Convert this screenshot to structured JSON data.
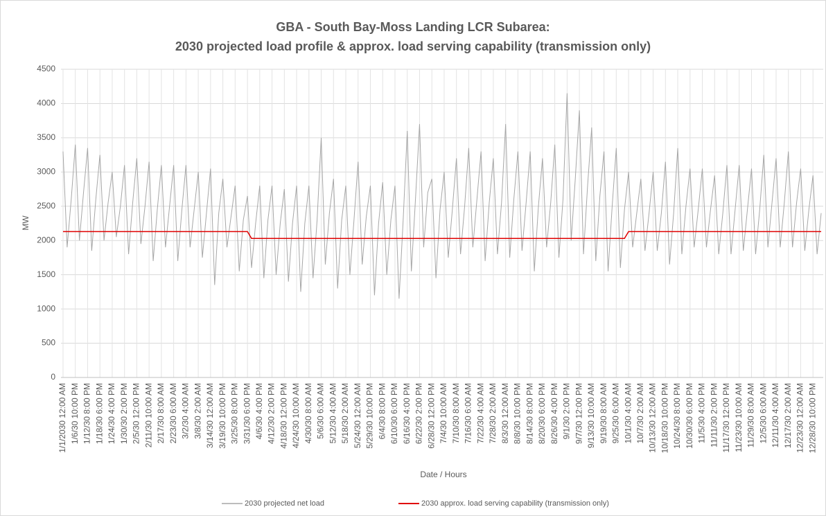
{
  "chart_data": {
    "type": "line",
    "title": "GBA - South Bay-Moss Landing LCR Subarea:",
    "subtitle": "2030 projected load profile & approx. load serving capability (transmission only)",
    "x_label": "Date / Hours",
    "y_label": "MW",
    "categories": [
      "1/1/2030 12:00 AM",
      null,
      null,
      "1/6/30 10:00 PM",
      null,
      null,
      "1/12/30 8:00 PM",
      null,
      null,
      "1/18/30 6:00 PM",
      null,
      null,
      "1/24/30 4:00 PM",
      null,
      null,
      "1/30/30 2:00 PM",
      null,
      null,
      "2/5/30 12:00 PM",
      null,
      null,
      "2/11/30 10:00 AM",
      null,
      null,
      "2/17/30 8:00 AM",
      null,
      null,
      "2/23/30 6:00 AM",
      null,
      null,
      "3/2/30 4:00 AM",
      null,
      null,
      "3/8/30 2:00 AM",
      null,
      null,
      "3/14/30 12:00 AM",
      null,
      null,
      "3/19/30 10:00 PM",
      null,
      null,
      "3/25/30 8:00 PM",
      null,
      null,
      "3/31/30 6:00 PM",
      null,
      null,
      "4/6/30 4:00 PM",
      null,
      null,
      "4/12/30 2:00 PM",
      null,
      null,
      "4/18/30 12:00 PM",
      null,
      null,
      "4/24/30 10:00 AM",
      null,
      null,
      "4/30/30 8:00 AM",
      null,
      null,
      "5/6/30 6:00 AM",
      null,
      null,
      "5/12/30 4:00 AM",
      null,
      null,
      "5/18/30 2:00 AM",
      null,
      null,
      "5/24/30 12:00 AM",
      null,
      null,
      "5/29/30 10:00 PM",
      null,
      null,
      "6/4/30 8:00 PM",
      null,
      null,
      "6/10/30 6:00 PM",
      null,
      null,
      "6/16/30 4:00 PM",
      null,
      null,
      "6/22/30 2:00 PM",
      null,
      null,
      "6/28/30 12:00 PM",
      null,
      null,
      "7/4/30 10:00 AM",
      null,
      null,
      "7/10/30 8:00 AM",
      null,
      null,
      "7/16/30 6:00 AM",
      null,
      null,
      "7/22/30 4:00 AM",
      null,
      null,
      "7/28/30 2:00 AM",
      null,
      null,
      "8/3/30 12:00 AM",
      null,
      null,
      "8/8/30 10:00 PM",
      null,
      null,
      "8/14/30 8:00 PM",
      null,
      null,
      "8/20/30 6:00 PM",
      null,
      null,
      "8/26/30 4:00 PM",
      null,
      null,
      "9/1/30 2:00 PM",
      null,
      null,
      "9/7/30 12:00 PM",
      null,
      null,
      "9/13/30 10:00 AM",
      null,
      null,
      "9/19/30 8:00 AM",
      null,
      null,
      "9/25/30 6:00 AM",
      null,
      null,
      "10/1/30 4:00 AM",
      null,
      null,
      "10/7/30 2:00 AM",
      null,
      null,
      "10/13/30 12:00 AM",
      null,
      null,
      "10/18/30 10:00 PM",
      null,
      null,
      "10/24/30 8:00 PM",
      null,
      null,
      "10/30/30 6:00 PM",
      null,
      null,
      "11/5/30 4:00 PM",
      null,
      null,
      "11/11/30 2:00 PM",
      null,
      null,
      "11/17/30 12:00 PM",
      null,
      null,
      "11/23/30 10:00 AM",
      null,
      null,
      "11/29/30 8:00 AM",
      null,
      null,
      "12/5/30 6:00 AM",
      null,
      null,
      "12/11/30 4:00 AM",
      null,
      null,
      "12/17/30 2:00 AM",
      null,
      null,
      "12/23/30 12:00 AM",
      null,
      null,
      "12/28/30 10:00 PM",
      null,
      null
    ],
    "series": [
      {
        "name": "2030 projected net load",
        "color": "#a6a6a6",
        "values": [
          3300,
          1900,
          2600,
          3400,
          2000,
          2700,
          3350,
          1850,
          2600,
          3250,
          2000,
          2550,
          3000,
          2050,
          2500,
          3100,
          1800,
          2550,
          3200,
          1950,
          2500,
          3150,
          1700,
          2450,
          3100,
          1900,
          2500,
          3100,
          1700,
          2450,
          3100,
          1900,
          2450,
          3000,
          1750,
          2400,
          3050,
          1350,
          2400,
          2900,
          1900,
          2350,
          2800,
          1550,
          2300,
          2650,
          1600,
          2250,
          2800,
          1450,
          2300,
          2800,
          1500,
          2250,
          2750,
          1400,
          2250,
          2800,
          1250,
          2250,
          2800,
          1450,
          2300,
          3500,
          1650,
          2400,
          2900,
          1300,
          2300,
          2800,
          1500,
          2300,
          3150,
          1650,
          2350,
          2800,
          1200,
          2250,
          2850,
          1500,
          2300,
          2800,
          1150,
          2300,
          3600,
          1550,
          2600,
          3700,
          1900,
          2700,
          2900,
          1450,
          2450,
          3000,
          1750,
          2450,
          3200,
          1800,
          2500,
          3350,
          1900,
          2600,
          3300,
          1700,
          2550,
          3200,
          1800,
          2550,
          3700,
          1750,
          2600,
          3300,
          1850,
          2550,
          3300,
          1550,
          2500,
          3200,
          1900,
          2550,
          3400,
          1750,
          2600,
          4150,
          2000,
          2900,
          3900,
          1800,
          2800,
          3650,
          1700,
          2650,
          3300,
          1550,
          2500,
          3350,
          1600,
          2450,
          3000,
          1900,
          2400,
          2900,
          1850,
          2400,
          3000,
          1850,
          2400,
          3150,
          1650,
          2400,
          3350,
          1800,
          2500,
          3050,
          1900,
          2450,
          3050,
          1900,
          2450,
          2950,
          1800,
          2400,
          3100,
          1800,
          2450,
          3100,
          1850,
          2450,
          3050,
          1800,
          2450,
          3250,
          1900,
          2550,
          3200,
          1900,
          2550,
          3300,
          1900,
          2550,
          3050,
          1850,
          2450,
          2950,
          1800,
          2400
        ]
      },
      {
        "name": "2030 approx. load serving  capability (transmission only)",
        "color": "#e00000",
        "values": [
          2130,
          2130,
          2130,
          2130,
          2130,
          2130,
          2130,
          2130,
          2130,
          2130,
          2130,
          2130,
          2130,
          2130,
          2130,
          2130,
          2130,
          2130,
          2130,
          2130,
          2130,
          2130,
          2130,
          2130,
          2130,
          2130,
          2130,
          2130,
          2130,
          2130,
          2130,
          2130,
          2130,
          2130,
          2130,
          2130,
          2130,
          2130,
          2130,
          2130,
          2130,
          2130,
          2130,
          2130,
          2130,
          2130,
          2030,
          2030,
          2030,
          2030,
          2030,
          2030,
          2030,
          2030,
          2030,
          2030,
          2030,
          2030,
          2030,
          2030,
          2030,
          2030,
          2030,
          2030,
          2030,
          2030,
          2030,
          2030,
          2030,
          2030,
          2030,
          2030,
          2030,
          2030,
          2030,
          2030,
          2030,
          2030,
          2030,
          2030,
          2030,
          2030,
          2030,
          2030,
          2030,
          2030,
          2030,
          2030,
          2030,
          2030,
          2030,
          2030,
          2030,
          2030,
          2030,
          2030,
          2030,
          2030,
          2030,
          2030,
          2030,
          2030,
          2030,
          2030,
          2030,
          2030,
          2030,
          2030,
          2030,
          2030,
          2030,
          2030,
          2030,
          2030,
          2030,
          2030,
          2030,
          2030,
          2030,
          2030,
          2030,
          2030,
          2030,
          2030,
          2030,
          2030,
          2030,
          2030,
          2030,
          2030,
          2030,
          2030,
          2030,
          2030,
          2030,
          2030,
          2030,
          2030,
          2130,
          2130,
          2130,
          2130,
          2130,
          2130,
          2130,
          2130,
          2130,
          2130,
          2130,
          2130,
          2130,
          2130,
          2130,
          2130,
          2130,
          2130,
          2130,
          2130,
          2130,
          2130,
          2130,
          2130,
          2130,
          2130,
          2130,
          2130,
          2130,
          2130,
          2130,
          2130,
          2130,
          2130,
          2130,
          2130,
          2130,
          2130,
          2130,
          2130,
          2130,
          2130,
          2130,
          2130,
          2130,
          2130,
          2130,
          2130
        ]
      }
    ],
    "ylim": [
      0,
      4500
    ],
    "yticks": [
      0,
      500,
      1000,
      1500,
      2000,
      2500,
      3000,
      3500,
      4000,
      4500
    ],
    "grid": true,
    "legend": "bottom"
  }
}
